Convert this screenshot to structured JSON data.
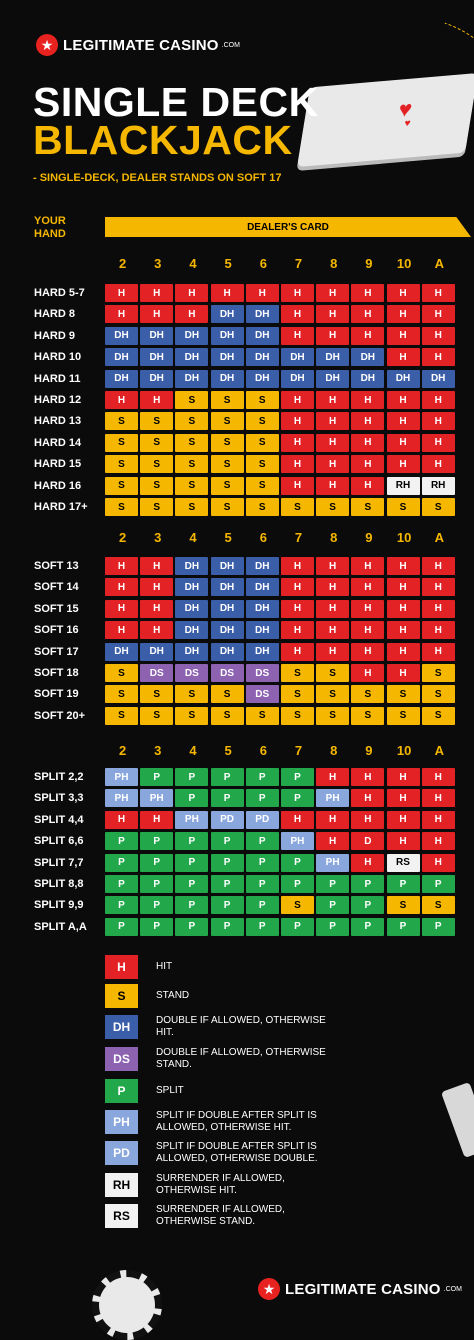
{
  "brand": {
    "name": "LEGITIMATE CASINO",
    "dotcom": ".COM"
  },
  "title_line1": "SINGLE DECK",
  "title_line2": "BLACKJACK",
  "subtitle": "- SINGLE-DECK, DEALER STANDS ON SOFT 17",
  "your_hand_label": "YOUR HAND",
  "dealer_card_label": "DEALER'S CARD",
  "dealer_cards": [
    "2",
    "3",
    "4",
    "5",
    "6",
    "7",
    "8",
    "9",
    "10",
    "A"
  ],
  "colors": {
    "H": "#e32226",
    "S": "#f5b700",
    "DH": "#3b5ea8",
    "DS": "#8c62b1",
    "P": "#22a84b",
    "PH": "#8aa7dd",
    "PD": "#8aa7dd",
    "RH": "#f2f2f2",
    "RS": "#f2f2f2"
  },
  "hard": [
    {
      "label": "HARD 5-7",
      "cells": [
        "H",
        "H",
        "H",
        "H",
        "H",
        "H",
        "H",
        "H",
        "H",
        "H"
      ]
    },
    {
      "label": "HARD 8",
      "cells": [
        "H",
        "H",
        "H",
        "DH",
        "DH",
        "H",
        "H",
        "H",
        "H",
        "H"
      ]
    },
    {
      "label": "HARD 9",
      "cells": [
        "DH",
        "DH",
        "DH",
        "DH",
        "DH",
        "H",
        "H",
        "H",
        "H",
        "H"
      ]
    },
    {
      "label": "HARD 10",
      "cells": [
        "DH",
        "DH",
        "DH",
        "DH",
        "DH",
        "DH",
        "DH",
        "DH",
        "H",
        "H"
      ]
    },
    {
      "label": "HARD 11",
      "cells": [
        "DH",
        "DH",
        "DH",
        "DH",
        "DH",
        "DH",
        "DH",
        "DH",
        "DH",
        "DH"
      ]
    },
    {
      "label": "HARD 12",
      "cells": [
        "H",
        "H",
        "S",
        "S",
        "S",
        "H",
        "H",
        "H",
        "H",
        "H"
      ]
    },
    {
      "label": "HARD 13",
      "cells": [
        "S",
        "S",
        "S",
        "S",
        "S",
        "H",
        "H",
        "H",
        "H",
        "H"
      ]
    },
    {
      "label": "HARD 14",
      "cells": [
        "S",
        "S",
        "S",
        "S",
        "S",
        "H",
        "H",
        "H",
        "H",
        "H"
      ]
    },
    {
      "label": "HARD 15",
      "cells": [
        "S",
        "S",
        "S",
        "S",
        "S",
        "H",
        "H",
        "H",
        "H",
        "H"
      ]
    },
    {
      "label": "HARD 16",
      "cells": [
        "S",
        "S",
        "S",
        "S",
        "S",
        "H",
        "H",
        "H",
        "RH",
        "RH"
      ]
    },
    {
      "label": "HARD 17+",
      "cells": [
        "S",
        "S",
        "S",
        "S",
        "S",
        "S",
        "S",
        "S",
        "S",
        "S"
      ]
    }
  ],
  "soft": [
    {
      "label": "SOFT 13",
      "cells": [
        "H",
        "H",
        "DH",
        "DH",
        "DH",
        "H",
        "H",
        "H",
        "H",
        "H"
      ]
    },
    {
      "label": "SOFT 14",
      "cells": [
        "H",
        "H",
        "DH",
        "DH",
        "DH",
        "H",
        "H",
        "H",
        "H",
        "H"
      ]
    },
    {
      "label": "SOFT 15",
      "cells": [
        "H",
        "H",
        "DH",
        "DH",
        "DH",
        "H",
        "H",
        "H",
        "H",
        "H"
      ]
    },
    {
      "label": "SOFT 16",
      "cells": [
        "H",
        "H",
        "DH",
        "DH",
        "DH",
        "H",
        "H",
        "H",
        "H",
        "H"
      ]
    },
    {
      "label": "SOFT 17",
      "cells": [
        "DH",
        "DH",
        "DH",
        "DH",
        "DH",
        "H",
        "H",
        "H",
        "H",
        "H"
      ]
    },
    {
      "label": "SOFT 18",
      "cells": [
        "S",
        "DS",
        "DS",
        "DS",
        "DS",
        "S",
        "S",
        "H",
        "H",
        "S"
      ]
    },
    {
      "label": "SOFT 19",
      "cells": [
        "S",
        "S",
        "S",
        "S",
        "DS",
        "S",
        "S",
        "S",
        "S",
        "S"
      ]
    },
    {
      "label": "SOFT 20+",
      "cells": [
        "S",
        "S",
        "S",
        "S",
        "S",
        "S",
        "S",
        "S",
        "S",
        "S"
      ]
    }
  ],
  "split": [
    {
      "label": "SPLIT 2,2",
      "cells": [
        "PH",
        "P",
        "P",
        "P",
        "P",
        "P",
        "H",
        "H",
        "H",
        "H"
      ]
    },
    {
      "label": "SPLIT 3,3",
      "cells": [
        "PH",
        "PH",
        "P",
        "P",
        "P",
        "P",
        "PH",
        "H",
        "H",
        "H"
      ]
    },
    {
      "label": "SPLIT 4,4",
      "cells": [
        "H",
        "H",
        "PH",
        "PD",
        "PD",
        "H",
        "H",
        "H",
        "H",
        "H"
      ]
    },
    {
      "label": "SPLIT 6,6",
      "cells": [
        "P",
        "P",
        "P",
        "P",
        "P",
        "PH",
        "H",
        "D",
        "H",
        "H"
      ]
    },
    {
      "label": "SPLIT 7,7",
      "cells": [
        "P",
        "P",
        "P",
        "P",
        "P",
        "P",
        "PH",
        "H",
        "RS",
        "H"
      ]
    },
    {
      "label": "SPLIT 8,8",
      "cells": [
        "P",
        "P",
        "P",
        "P",
        "P",
        "P",
        "P",
        "P",
        "P",
        "P"
      ]
    },
    {
      "label": "SPLIT 9,9",
      "cells": [
        "P",
        "P",
        "P",
        "P",
        "P",
        "S",
        "P",
        "P",
        "S",
        "S"
      ]
    },
    {
      "label": "SPLIT A,A",
      "cells": [
        "P",
        "P",
        "P",
        "P",
        "P",
        "P",
        "P",
        "P",
        "P",
        "P"
      ]
    }
  ],
  "legend": [
    {
      "code": "H",
      "desc": "HIT"
    },
    {
      "code": "S",
      "desc": "STAND"
    },
    {
      "code": "DH",
      "desc": "DOUBLE IF ALLOWED, OTHERWISE HIT."
    },
    {
      "code": "DS",
      "desc": "DOUBLE IF ALLOWED, OTHERWISE STAND."
    },
    {
      "code": "P",
      "desc": "SPLIT"
    },
    {
      "code": "PH",
      "desc": "SPLIT IF DOUBLE AFTER SPLIT IS ALLOWED, OTHERWISE HIT."
    },
    {
      "code": "PD",
      "desc": "SPLIT IF DOUBLE AFTER SPLIT IS ALLOWED, OTHERWISE DOUBLE."
    },
    {
      "code": "RH",
      "desc": "SURRENDER IF ALLOWED, OTHERWISE HIT."
    },
    {
      "code": "RS",
      "desc": "SURRENDER IF ALLOWED, OTHERWISE STAND."
    }
  ]
}
